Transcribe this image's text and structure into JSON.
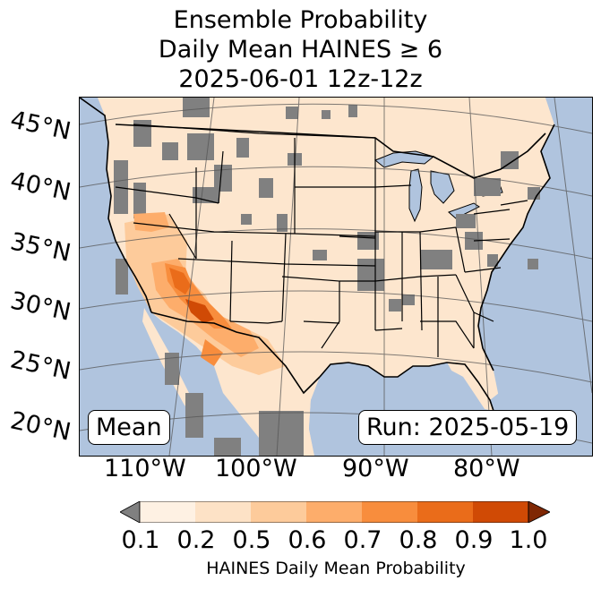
{
  "title": {
    "line1": "Ensemble Probability",
    "line2": "Daily Mean HAINES ≥ 6",
    "line3": "2025-06-01 12z-12z"
  },
  "map": {
    "lat_labels": [
      "45°N",
      "40°N",
      "35°N",
      "30°N",
      "25°N",
      "20°N"
    ],
    "lon_labels": [
      "110°W",
      "100°W",
      "90°W",
      "80°W"
    ],
    "stat_label": "Mean",
    "run_label": "Run: 2025-05-19",
    "colors": {
      "ocean": "#b0c4de",
      "land_low": "#fde6ce",
      "missing": "#808080",
      "lakes": "#b0c4de"
    }
  },
  "colorbar": {
    "label": "HAINES Daily Mean Probability",
    "ticks": [
      "0.1",
      "0.2",
      "0.5",
      "0.6",
      "0.7",
      "0.8",
      "0.9",
      "1.0"
    ],
    "colors": [
      "#fef1e3",
      "#fde2c6",
      "#fdcb9b",
      "#fdad6b",
      "#f88d3d",
      "#ea6c1a",
      "#d04a05",
      "#a63603"
    ],
    "under_color": "#808080",
    "over_color": "#7f2704"
  }
}
